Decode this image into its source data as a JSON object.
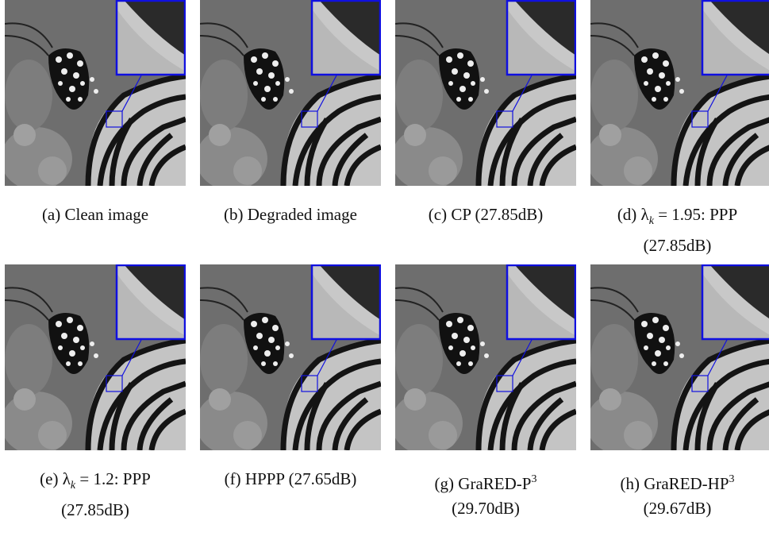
{
  "panels": [
    {
      "caption": [
        [
          {
            "text": "(a) Clean image"
          }
        ]
      ]
    },
    {
      "caption": [
        [
          {
            "text": "(b) Degraded image"
          }
        ]
      ]
    },
    {
      "caption": [
        [
          {
            "text": "(c) CP (27.85dB)"
          }
        ]
      ]
    },
    {
      "caption": [
        [
          {
            "text": "(d) λ"
          },
          {
            "text": "k",
            "style": "sub"
          },
          {
            "text": " = 1.95: PPP"
          }
        ],
        [
          {
            "text": "(27.85dB)"
          }
        ]
      ]
    },
    {
      "caption": [
        [
          {
            "text": "(e) λ"
          },
          {
            "text": "k",
            "style": "sub"
          },
          {
            "text": " = 1.2: PPP"
          }
        ],
        [
          {
            "text": "(27.85dB)"
          }
        ]
      ]
    },
    {
      "caption": [
        [
          {
            "text": "(f) HPPP (27.65dB)"
          }
        ]
      ]
    },
    {
      "caption": [
        [
          {
            "text": "(g) GraRED-P"
          },
          {
            "text": "3",
            "style": "sup"
          }
        ],
        [
          {
            "text": "(29.70dB)"
          }
        ]
      ]
    },
    {
      "caption": [
        [
          {
            "text": "(h) GraRED-HP"
          },
          {
            "text": "3",
            "style": "sup"
          }
        ],
        [
          {
            "text": "(29.67dB)"
          }
        ]
      ]
    }
  ]
}
